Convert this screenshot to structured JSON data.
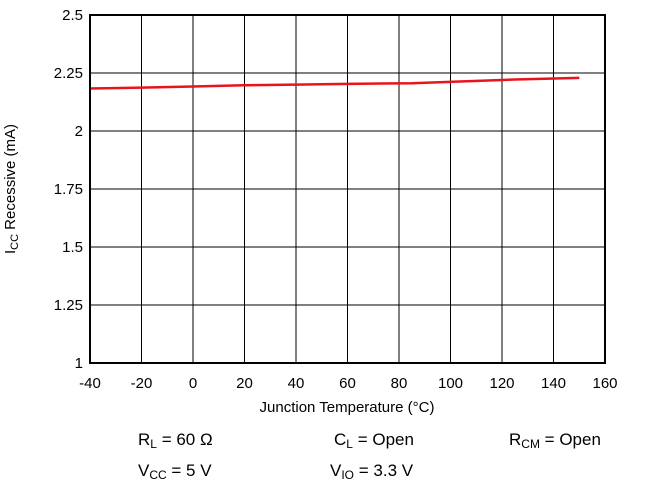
{
  "chart_data": {
    "type": "line",
    "xlabel": "Junction Temperature (°C)",
    "ylabel": {
      "main": "I",
      "sub": "CC",
      "rest": " Recessive (mA)"
    },
    "xlim": [
      -40,
      160
    ],
    "ylim": [
      1,
      2.5
    ],
    "x_ticks": [
      -40,
      -20,
      0,
      20,
      40,
      60,
      80,
      100,
      120,
      140,
      160
    ],
    "y_ticks": [
      1,
      1.25,
      1.5,
      1.75,
      2,
      2.25,
      2.5
    ],
    "y_tick_labels": [
      "1",
      "1.25",
      "1.5",
      "1.75",
      "2",
      "2.25",
      "2.5"
    ],
    "grid": true,
    "series": [
      {
        "color": "#e8141c",
        "x": [
          -40,
          -20,
          0,
          20,
          40,
          60,
          85,
          105,
          125,
          150
        ],
        "y": [
          2.183,
          2.187,
          2.192,
          2.197,
          2.2,
          2.203,
          2.206,
          2.214,
          2.222,
          2.229
        ]
      }
    ]
  },
  "conditions": {
    "rl": {
      "main": "R",
      "sub": "L",
      "rest": " = 60 Ω"
    },
    "cl": {
      "main": "C",
      "sub": "L",
      "rest": " = Open"
    },
    "rcm": {
      "main": "R",
      "sub": "CM",
      "rest": " = Open"
    },
    "vcc": {
      "main": "V",
      "sub": "CC",
      "rest": " = 5 V"
    },
    "vio": {
      "main": "V",
      "sub": "IO",
      "rest": " = 3.3 V"
    }
  }
}
